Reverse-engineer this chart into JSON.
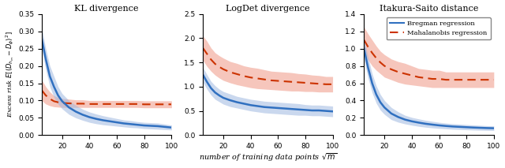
{
  "titles": [
    "KL divergence",
    "LogDet divergence",
    "Itakura-Saito distance"
  ],
  "xlabel": "number of training data points $\\sqrt{m}$",
  "ylabel": "Excess risk $E[(D_{h_m} - D_\\phi)^2]$",
  "x": [
    5,
    8,
    11,
    14,
    17,
    20,
    25,
    30,
    35,
    40,
    45,
    50,
    55,
    60,
    65,
    70,
    75,
    80,
    85,
    90,
    95,
    100
  ],
  "blue_color": "#3070c0",
  "blue_fill": "#a0b8e0",
  "red_color": "#cc3300",
  "red_fill": "#f0a090",
  "legend_labels": [
    "Bregman regression",
    "Mahalanobis regression"
  ],
  "plots": [
    {
      "blue_mean": [
        0.28,
        0.22,
        0.17,
        0.14,
        0.115,
        0.098,
        0.08,
        0.068,
        0.059,
        0.052,
        0.047,
        0.043,
        0.04,
        0.037,
        0.034,
        0.032,
        0.03,
        0.028,
        0.027,
        0.026,
        0.024,
        0.022
      ],
      "blue_lo": [
        0.25,
        0.19,
        0.14,
        0.11,
        0.09,
        0.076,
        0.06,
        0.05,
        0.043,
        0.037,
        0.033,
        0.03,
        0.028,
        0.026,
        0.024,
        0.022,
        0.021,
        0.019,
        0.018,
        0.017,
        0.016,
        0.015
      ],
      "blue_hi": [
        0.31,
        0.25,
        0.2,
        0.17,
        0.14,
        0.12,
        0.1,
        0.086,
        0.075,
        0.067,
        0.061,
        0.056,
        0.052,
        0.048,
        0.044,
        0.042,
        0.039,
        0.037,
        0.036,
        0.035,
        0.032,
        0.029
      ],
      "red_mean": [
        0.13,
        0.115,
        0.105,
        0.098,
        0.095,
        0.093,
        0.092,
        0.091,
        0.091,
        0.09,
        0.09,
        0.09,
        0.09,
        0.09,
        0.09,
        0.09,
        0.09,
        0.089,
        0.089,
        0.089,
        0.089,
        0.089
      ],
      "red_lo": [
        0.1,
        0.09,
        0.085,
        0.082,
        0.081,
        0.08,
        0.08,
        0.08,
        0.08,
        0.08,
        0.08,
        0.08,
        0.08,
        0.08,
        0.08,
        0.08,
        0.08,
        0.079,
        0.079,
        0.079,
        0.079,
        0.079
      ],
      "red_hi": [
        0.16,
        0.14,
        0.125,
        0.114,
        0.109,
        0.106,
        0.104,
        0.102,
        0.102,
        0.1,
        0.1,
        0.1,
        0.1,
        0.1,
        0.1,
        0.1,
        0.1,
        0.099,
        0.099,
        0.099,
        0.099,
        0.099
      ],
      "ylim": [
        0,
        0.35
      ],
      "yticks": [
        0,
        0.05,
        0.1,
        0.15,
        0.2,
        0.25,
        0.3,
        0.35
      ]
    },
    {
      "blue_mean": [
        1.25,
        1.1,
        0.97,
        0.88,
        0.82,
        0.77,
        0.72,
        0.68,
        0.65,
        0.62,
        0.6,
        0.58,
        0.57,
        0.56,
        0.55,
        0.54,
        0.53,
        0.52,
        0.51,
        0.51,
        0.5,
        0.49
      ],
      "blue_lo": [
        1.1,
        0.95,
        0.83,
        0.74,
        0.69,
        0.64,
        0.59,
        0.56,
        0.53,
        0.5,
        0.48,
        0.46,
        0.45,
        0.44,
        0.43,
        0.42,
        0.41,
        0.41,
        0.4,
        0.4,
        0.39,
        0.38
      ],
      "blue_hi": [
        1.4,
        1.25,
        1.11,
        1.02,
        0.95,
        0.9,
        0.85,
        0.8,
        0.77,
        0.74,
        0.72,
        0.7,
        0.69,
        0.68,
        0.67,
        0.66,
        0.65,
        0.63,
        0.62,
        0.62,
        0.61,
        0.6
      ],
      "red_mean": [
        1.8,
        1.68,
        1.56,
        1.47,
        1.41,
        1.36,
        1.3,
        1.26,
        1.22,
        1.19,
        1.17,
        1.15,
        1.13,
        1.12,
        1.11,
        1.1,
        1.09,
        1.08,
        1.07,
        1.06,
        1.05,
        1.05
      ],
      "red_lo": [
        1.55,
        1.42,
        1.32,
        1.24,
        1.18,
        1.13,
        1.08,
        1.04,
        1.01,
        0.98,
        0.96,
        0.95,
        0.94,
        0.93,
        0.92,
        0.91,
        0.91,
        0.9,
        0.9,
        0.89,
        0.89,
        0.89
      ],
      "red_hi": [
        2.05,
        1.94,
        1.8,
        1.7,
        1.64,
        1.59,
        1.52,
        1.48,
        1.43,
        1.4,
        1.38,
        1.35,
        1.32,
        1.31,
        1.3,
        1.29,
        1.27,
        1.26,
        1.24,
        1.23,
        1.21,
        1.21
      ],
      "ylim": [
        0,
        2.5
      ],
      "yticks": [
        0,
        0.5,
        1.0,
        1.5,
        2.0,
        2.5
      ]
    },
    {
      "blue_mean": [
        1.0,
        0.78,
        0.6,
        0.47,
        0.38,
        0.32,
        0.25,
        0.21,
        0.18,
        0.16,
        0.145,
        0.132,
        0.122,
        0.113,
        0.106,
        0.1,
        0.096,
        0.092,
        0.088,
        0.085,
        0.082,
        0.08
      ],
      "blue_lo": [
        0.88,
        0.66,
        0.49,
        0.37,
        0.29,
        0.24,
        0.18,
        0.15,
        0.13,
        0.115,
        0.102,
        0.092,
        0.084,
        0.078,
        0.073,
        0.068,
        0.065,
        0.062,
        0.059,
        0.057,
        0.055,
        0.053
      ],
      "blue_hi": [
        1.12,
        0.9,
        0.71,
        0.57,
        0.47,
        0.4,
        0.32,
        0.27,
        0.23,
        0.205,
        0.188,
        0.172,
        0.16,
        0.148,
        0.139,
        0.132,
        0.127,
        0.122,
        0.117,
        0.113,
        0.109,
        0.107
      ],
      "red_mean": [
        1.1,
        1.02,
        0.95,
        0.89,
        0.84,
        0.8,
        0.76,
        0.73,
        0.71,
        0.69,
        0.67,
        0.66,
        0.65,
        0.65,
        0.64,
        0.64,
        0.64,
        0.64,
        0.64,
        0.64,
        0.64,
        0.64
      ],
      "red_lo": [
        0.95,
        0.87,
        0.8,
        0.75,
        0.71,
        0.67,
        0.64,
        0.61,
        0.59,
        0.58,
        0.57,
        0.56,
        0.55,
        0.55,
        0.55,
        0.55,
        0.55,
        0.55,
        0.55,
        0.55,
        0.55,
        0.55
      ],
      "red_hi": [
        1.25,
        1.17,
        1.1,
        1.03,
        0.97,
        0.93,
        0.88,
        0.85,
        0.83,
        0.8,
        0.77,
        0.76,
        0.75,
        0.75,
        0.73,
        0.73,
        0.73,
        0.73,
        0.73,
        0.73,
        0.73,
        0.73
      ],
      "ylim": [
        0,
        1.4
      ],
      "yticks": [
        0,
        0.2,
        0.4,
        0.6,
        0.8,
        1.0,
        1.2,
        1.4
      ]
    }
  ]
}
